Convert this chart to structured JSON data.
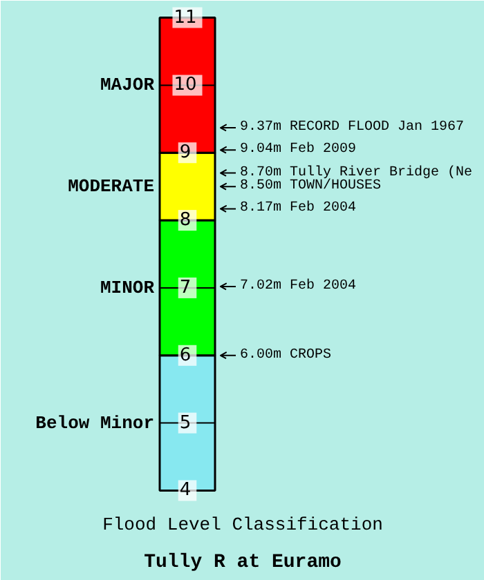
{
  "chart_data": {
    "type": "bar",
    "title": "Tully R at Euramo",
    "subtitle": "Flood Level Classification",
    "categories": [
      null
    ],
    "series": [
      {
        "name": "Below Minor",
        "color": "#87e8f0",
        "base": [
          4
        ],
        "values": [
          2
        ]
      },
      {
        "name": "MINOR",
        "color": "#00ff00",
        "base": [
          6
        ],
        "values": [
          2
        ]
      },
      {
        "name": "MODERATE",
        "color": "#ffff00",
        "base": [
          8
        ],
        "values": [
          1
        ]
      },
      {
        "name": "MAJOR",
        "color": "#ff0000",
        "base": [
          9
        ],
        "values": [
          2
        ]
      }
    ],
    "ylim": [
      4,
      11
    ],
    "yticks": [
      4,
      5,
      6,
      7,
      8,
      9,
      10,
      11
    ],
    "grid": false,
    "legend": "left",
    "ref_lines": [
      {
        "axis": "y",
        "value": 9.37,
        "label": "9.37m RECORD FLOOD Jan 1967"
      },
      {
        "axis": "y",
        "value": 9.04,
        "label": "9.04m Feb 2009"
      },
      {
        "axis": "y",
        "value": 8.7,
        "label": "8.70m Tully River Bridge (Ne"
      },
      {
        "axis": "y",
        "value": 8.5,
        "label": "8.50m TOWN/HOUSES"
      },
      {
        "axis": "y",
        "value": 8.17,
        "label": "8.17m Feb 2004"
      },
      {
        "axis": "y",
        "value": 7.02,
        "label": "7.02m Feb 2004"
      },
      {
        "axis": "y",
        "value": 6.0,
        "label": "6.00m CROPS"
      }
    ]
  }
}
